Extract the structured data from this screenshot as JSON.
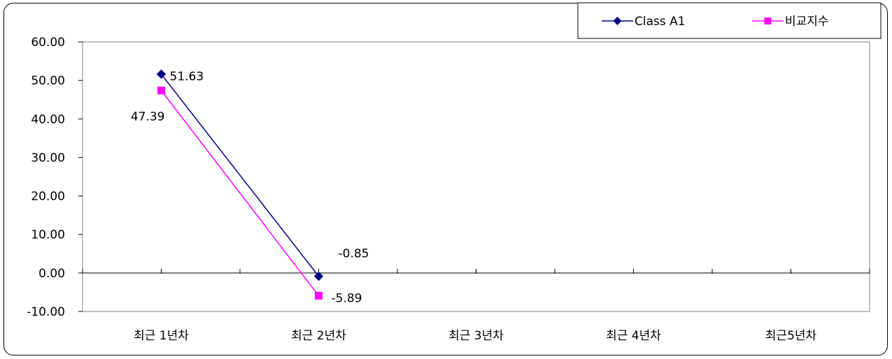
{
  "chart_data": {
    "type": "line",
    "title": "",
    "xlabel": "",
    "ylabel": "",
    "categories": [
      "최근 1년차",
      "최근 2년차",
      "최근 3년차",
      "최근 4년차",
      "최근5년차"
    ],
    "ylim": [
      -10,
      60
    ],
    "y_ticks": [
      "60.00",
      "50.00",
      "40.00",
      "30.00",
      "20.00",
      "10.00",
      "0.00",
      "-10.00"
    ],
    "y_tick_values": [
      60,
      50,
      40,
      30,
      20,
      10,
      0,
      -10
    ],
    "grid": false,
    "legend_position": "top-right",
    "series": [
      {
        "name": "Class A1",
        "color": "#000080",
        "marker": "diamond",
        "values": [
          51.63,
          -0.85,
          null,
          null,
          null
        ],
        "labels": [
          "51.63",
          "-0.85",
          null,
          null,
          null
        ]
      },
      {
        "name": "비교지수",
        "color": "#FF00FF",
        "marker": "square",
        "values": [
          47.39,
          -5.89,
          null,
          null,
          null
        ],
        "labels": [
          "47.39",
          "-5.89",
          null,
          null,
          null
        ]
      }
    ]
  }
}
